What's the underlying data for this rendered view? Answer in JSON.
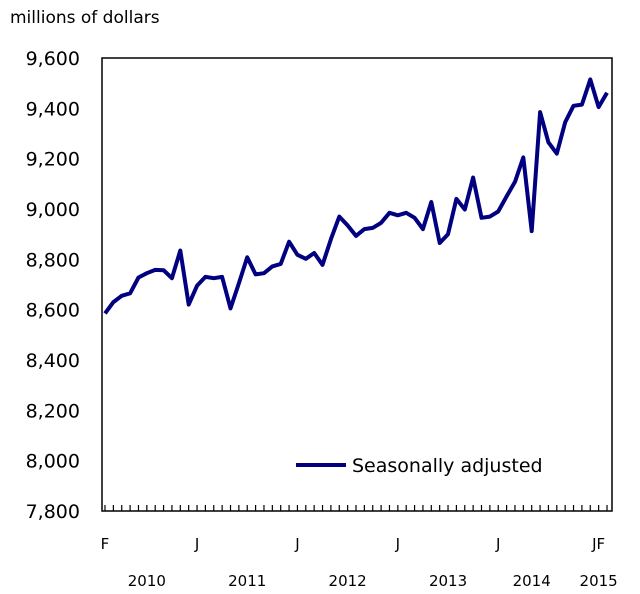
{
  "chart_data": {
    "type": "line",
    "title": "",
    "ylabel": "millions of dollars",
    "xlabel": "",
    "ylim": [
      7800,
      9600
    ],
    "yticks": [
      7800,
      8000,
      8200,
      8400,
      8600,
      8800,
      9000,
      9200,
      9400,
      9600
    ],
    "ytick_labels": [
      "7,800",
      "8,000",
      "8,200",
      "8,400",
      "8,600",
      "8,800",
      "9,000",
      "9,200",
      "9,400",
      "9,600"
    ],
    "x_range": [
      "2010-02",
      "2015-02"
    ],
    "month_labels": [
      {
        "label": "F",
        "date": "2010-02"
      },
      {
        "label": "J",
        "date": "2011-01"
      },
      {
        "label": "J",
        "date": "2012-01"
      },
      {
        "label": "J",
        "date": "2013-01"
      },
      {
        "label": "J",
        "date": "2014-01"
      },
      {
        "label": "JF",
        "date": "2015-01"
      }
    ],
    "year_labels": [
      {
        "label": "2010",
        "date": "2010-07"
      },
      {
        "label": "2011",
        "date": "2011-07"
      },
      {
        "label": "2012",
        "date": "2012-07"
      },
      {
        "label": "2013",
        "date": "2013-07"
      },
      {
        "label": "2014",
        "date": "2014-05"
      },
      {
        "label": "2015",
        "date": "2015-01"
      }
    ],
    "legend": {
      "position": "bottom-right"
    },
    "grid": false,
    "series": [
      {
        "name": "Seasonally adjusted",
        "color": "#000080",
        "x": [
          "2010-02",
          "2010-03",
          "2010-04",
          "2010-05",
          "2010-06",
          "2010-07",
          "2010-08",
          "2010-09",
          "2010-10",
          "2010-11",
          "2010-12",
          "2011-01",
          "2011-02",
          "2011-03",
          "2011-04",
          "2011-05",
          "2011-06",
          "2011-07",
          "2011-08",
          "2011-09",
          "2011-10",
          "2011-11",
          "2011-12",
          "2012-01",
          "2012-02",
          "2012-03",
          "2012-04",
          "2012-05",
          "2012-06",
          "2012-07",
          "2012-08",
          "2012-09",
          "2012-10",
          "2012-11",
          "2012-12",
          "2013-01",
          "2013-02",
          "2013-03",
          "2013-04",
          "2013-05",
          "2013-06",
          "2013-07",
          "2013-08",
          "2013-09",
          "2013-10",
          "2013-11",
          "2013-12",
          "2014-01",
          "2014-02",
          "2014-03",
          "2014-04",
          "2014-05",
          "2014-06",
          "2014-07",
          "2014-08",
          "2014-09",
          "2014-10",
          "2014-11",
          "2014-12",
          "2015-01",
          "2015-02"
        ],
        "values": [
          8585,
          8630,
          8655,
          8665,
          8728,
          8745,
          8758,
          8757,
          8725,
          8835,
          8620,
          8695,
          8730,
          8725,
          8730,
          8605,
          8705,
          8808,
          8740,
          8745,
          8772,
          8782,
          8870,
          8818,
          8802,
          8825,
          8778,
          8880,
          8970,
          8935,
          8893,
          8920,
          8925,
          8945,
          8985,
          8975,
          8985,
          8965,
          8920,
          9028,
          8865,
          8900,
          9040,
          8998,
          9125,
          8965,
          8970,
          8990,
          9050,
          9108,
          9205,
          8912,
          9385,
          9265,
          9220,
          9345,
          9410,
          9415,
          9515,
          9405,
          9462
        ]
      }
    ]
  }
}
